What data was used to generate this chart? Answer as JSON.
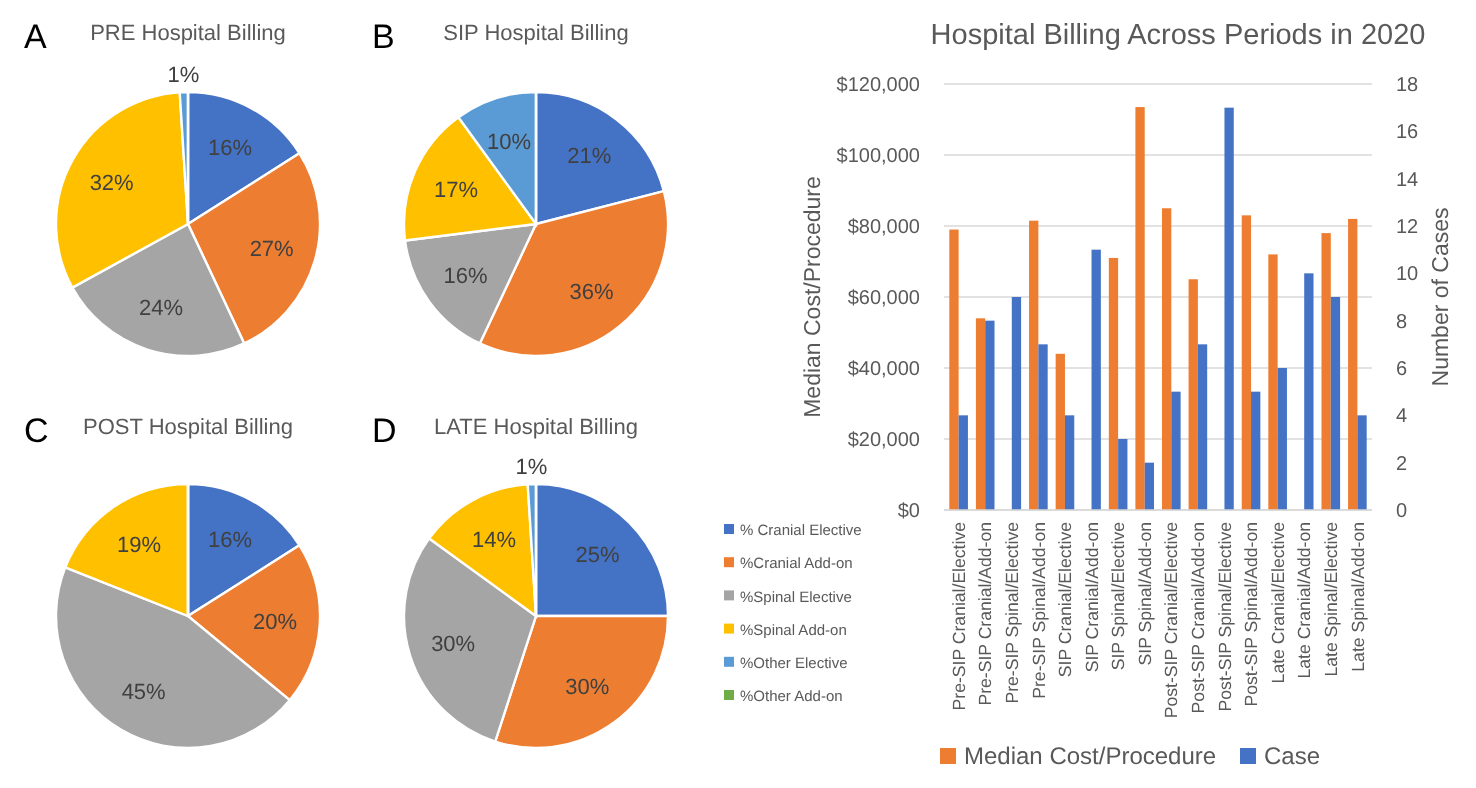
{
  "chart_data": [
    {
      "type": "pie",
      "title": "PRE Hospital Billing",
      "annotations": [
        "A"
      ],
      "values": [
        16,
        27,
        24,
        32,
        1,
        0
      ],
      "value_labels": [
        "16%",
        "27%",
        "24%",
        "32%",
        "1%",
        null
      ],
      "colors": [
        "#4472c4",
        "#ed7d31",
        "#a5a5a5",
        "#ffc000",
        "#5b9bd5",
        "#70ad47"
      ]
    },
    {
      "type": "pie",
      "title": "SIP Hospital Billing",
      "annotations": [
        "B"
      ],
      "values": [
        21,
        36,
        16,
        17,
        10,
        0
      ],
      "value_labels": [
        "21%",
        "36%",
        "16%",
        "17%",
        "10%",
        null
      ],
      "colors": [
        "#4472c4",
        "#ed7d31",
        "#a5a5a5",
        "#ffc000",
        "#5b9bd5",
        "#70ad47"
      ]
    },
    {
      "type": "pie",
      "title": "POST Hospital Billing",
      "annotations": [
        "C"
      ],
      "values": [
        16,
        20,
        45,
        19,
        0,
        0
      ],
      "value_labels": [
        "16%",
        "20%",
        "45%",
        "19%",
        null,
        null
      ],
      "colors": [
        "#4472c4",
        "#ed7d31",
        "#a5a5a5",
        "#ffc000",
        "#5b9bd5",
        "#70ad47"
      ]
    },
    {
      "type": "pie",
      "title": "LATE Hospital Billing",
      "annotations": [
        "D"
      ],
      "legend": "right",
      "categories": [
        "% Cranial Elective",
        "%Cranial Add-on",
        "%Spinal Elective",
        "%Spinal Add-on",
        "%Other Elective",
        "%Other Add-on"
      ],
      "values": [
        25,
        30,
        30,
        14,
        1,
        0
      ],
      "value_labels": [
        "25%",
        "30%",
        "30%",
        "14%",
        "1%",
        null
      ],
      "colors": [
        "#4472c4",
        "#ed7d31",
        "#a5a5a5",
        "#ffc000",
        "#5b9bd5",
        "#70ad47"
      ]
    },
    {
      "type": "bar",
      "title": "Hospital Billing Across Periods in 2020",
      "ylabel": "Median Cost/Procedure",
      "y2label": "Number of Cases",
      "legend": "bottom",
      "grid": "y",
      "categories": [
        "Pre-SIP Cranial/Elective",
        "Pre-SIP Cranial/Add-on",
        "Pre-SIP Spinal/Elective",
        "Pre-SIP Spinal/Add-on",
        "SIP Cranial/Elective",
        "SIP Cranial/Add-on",
        "SIP Spinal/Elective",
        "SIP Spinal/Add-on",
        "Post-SIP Cranial/Elective",
        "Post-SIP Cranial/Add-on",
        "Post-SIP Spinal/Elective",
        "Post-SIP Spinal/Add-on",
        "Late Cranial/Elective",
        "Late Cranial/Add-on",
        "Late Spinal/Elective",
        "Late Spinal/Add-on"
      ],
      "series": [
        {
          "name": "Median Cost/Procedure",
          "color": "#ed7d31",
          "values": [
            79000,
            54000,
            null,
            81500,
            44000,
            null,
            71000,
            113500,
            85000,
            65000,
            null,
            83000,
            72000,
            null,
            78000,
            82000
          ]
        },
        {
          "name": "Case",
          "color": "#4472c4",
          "axis": "y2",
          "values": [
            4,
            8,
            9,
            7,
            4,
            11,
            3,
            2,
            5,
            7,
            17,
            5,
            6,
            10,
            9,
            4
          ]
        }
      ],
      "ylim": [
        0,
        120000
      ],
      "yticks": [
        {
          "value": 0,
          "label": "$0"
        },
        {
          "value": 20000,
          "label": "$20,000"
        },
        {
          "value": 40000,
          "label": "$40,000"
        },
        {
          "value": 60000,
          "label": "$60,000"
        },
        {
          "value": 80000,
          "label": "$80,000"
        },
        {
          "value": 100000,
          "label": "$100,000"
        },
        {
          "value": 120000,
          "label": "$120,000"
        }
      ],
      "y2lim": [
        0,
        18
      ],
      "y2ticks": [
        0,
        2,
        4,
        6,
        8,
        10,
        12,
        14,
        16,
        18
      ]
    }
  ]
}
